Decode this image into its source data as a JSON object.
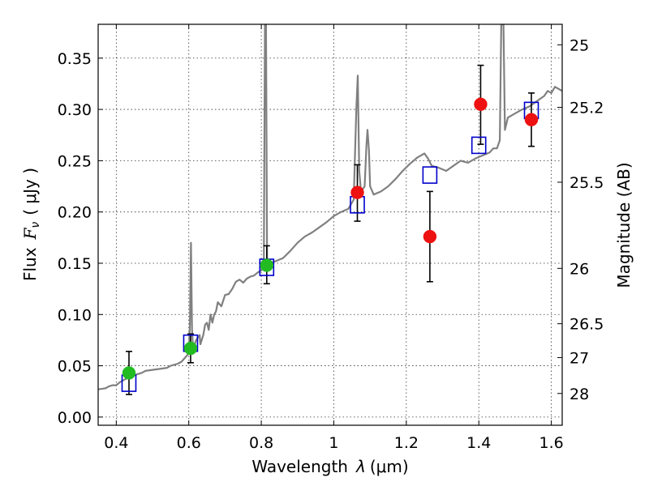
{
  "chart_data": {
    "type": "scatter",
    "xlabel": "Wavelength",
    "xlabel_symbol": "λ",
    "xlabel_unit": "(μm)",
    "ylabel": "Flux",
    "ylabel_symbol": "F",
    "ylabel_sub": "ν",
    "ylabel_unit": "( μJy )",
    "y2label": "Magnitude (AB)",
    "xlim": [
      0.35,
      1.63
    ],
    "ylim": [
      -0.008,
      0.383
    ],
    "grid": true,
    "x_ticks": [
      {
        "value": 0.4,
        "label": "0.4"
      },
      {
        "value": 0.6,
        "label": "0.6"
      },
      {
        "value": 0.8,
        "label": "0.8"
      },
      {
        "value": 1.0,
        "label": "1"
      },
      {
        "value": 1.2,
        "label": "1.2"
      },
      {
        "value": 1.4,
        "label": "1.4"
      },
      {
        "value": 1.6,
        "label": "1.6"
      }
    ],
    "y_ticks": [
      {
        "value": 0.0,
        "label": "0.00"
      },
      {
        "value": 0.05,
        "label": "0.05"
      },
      {
        "value": 0.1,
        "label": "0.10"
      },
      {
        "value": 0.15,
        "label": "0.15"
      },
      {
        "value": 0.2,
        "label": "0.20"
      },
      {
        "value": 0.25,
        "label": "0.25"
      },
      {
        "value": 0.3,
        "label": "0.30"
      },
      {
        "value": 0.35,
        "label": "0.35"
      }
    ],
    "y2_ticks": [
      {
        "flux": 0.363,
        "label": "25"
      },
      {
        "flux": 0.302,
        "label": "25.2"
      },
      {
        "flux": 0.229,
        "label": "25.5"
      },
      {
        "flux": 0.145,
        "label": "26"
      },
      {
        "flux": 0.091,
        "label": "26.5"
      },
      {
        "flux": 0.058,
        "label": "27"
      },
      {
        "flux": 0.023,
        "label": "28"
      }
    ],
    "series": [
      {
        "kind": "line",
        "color": "#808080",
        "points": [
          [
            0.35,
            0.027
          ],
          [
            0.37,
            0.028
          ],
          [
            0.38,
            0.03
          ],
          [
            0.39,
            0.031
          ],
          [
            0.4,
            0.031
          ],
          [
            0.41,
            0.034
          ],
          [
            0.42,
            0.036
          ],
          [
            0.43,
            0.038
          ],
          [
            0.44,
            0.04
          ],
          [
            0.45,
            0.041
          ],
          [
            0.46,
            0.042
          ],
          [
            0.47,
            0.043
          ],
          [
            0.48,
            0.045
          ],
          [
            0.5,
            0.046
          ],
          [
            0.52,
            0.047
          ],
          [
            0.54,
            0.048
          ],
          [
            0.55,
            0.05
          ],
          [
            0.57,
            0.052
          ],
          [
            0.58,
            0.054
          ],
          [
            0.59,
            0.058
          ],
          [
            0.6,
            0.062
          ],
          [
            0.603,
            0.09
          ],
          [
            0.606,
            0.17
          ],
          [
            0.609,
            0.085
          ],
          [
            0.612,
            0.066
          ],
          [
            0.62,
            0.075
          ],
          [
            0.63,
            0.08
          ],
          [
            0.632,
            0.071
          ],
          [
            0.64,
            0.08
          ],
          [
            0.645,
            0.09
          ],
          [
            0.65,
            0.092
          ],
          [
            0.655,
            0.085
          ],
          [
            0.66,
            0.1
          ],
          [
            0.665,
            0.092
          ],
          [
            0.67,
            0.1
          ],
          [
            0.675,
            0.103
          ],
          [
            0.68,
            0.112
          ],
          [
            0.69,
            0.108
          ],
          [
            0.7,
            0.119
          ],
          [
            0.71,
            0.12
          ],
          [
            0.72,
            0.125
          ],
          [
            0.73,
            0.132
          ],
          [
            0.74,
            0.134
          ],
          [
            0.75,
            0.131
          ],
          [
            0.76,
            0.135
          ],
          [
            0.77,
            0.137
          ],
          [
            0.78,
            0.138
          ],
          [
            0.79,
            0.141
          ],
          [
            0.8,
            0.143
          ],
          [
            0.807,
            0.148
          ],
          [
            0.81,
            0.383
          ],
          [
            0.813,
            0.383
          ],
          [
            0.816,
            0.155
          ],
          [
            0.82,
            0.15
          ],
          [
            0.84,
            0.152
          ],
          [
            0.86,
            0.155
          ],
          [
            0.88,
            0.162
          ],
          [
            0.9,
            0.17
          ],
          [
            0.92,
            0.176
          ],
          [
            0.94,
            0.18
          ],
          [
            0.96,
            0.185
          ],
          [
            0.98,
            0.19
          ],
          [
            1.0,
            0.196
          ],
          [
            1.02,
            0.2
          ],
          [
            1.04,
            0.203
          ],
          [
            1.055,
            0.212
          ],
          [
            1.062,
            0.3
          ],
          [
            1.066,
            0.333
          ],
          [
            1.07,
            0.24
          ],
          [
            1.075,
            0.22
          ],
          [
            1.085,
            0.225
          ],
          [
            1.09,
            0.265
          ],
          [
            1.093,
            0.28
          ],
          [
            1.097,
            0.26
          ],
          [
            1.1,
            0.225
          ],
          [
            1.11,
            0.217
          ],
          [
            1.13,
            0.22
          ],
          [
            1.15,
            0.225
          ],
          [
            1.17,
            0.232
          ],
          [
            1.19,
            0.24
          ],
          [
            1.21,
            0.247
          ],
          [
            1.23,
            0.253
          ],
          [
            1.25,
            0.257
          ],
          [
            1.26,
            0.252
          ],
          [
            1.27,
            0.245
          ],
          [
            1.29,
            0.243
          ],
          [
            1.31,
            0.24
          ],
          [
            1.33,
            0.245
          ],
          [
            1.35,
            0.25
          ],
          [
            1.37,
            0.248
          ],
          [
            1.39,
            0.252
          ],
          [
            1.41,
            0.255
          ],
          [
            1.43,
            0.258
          ],
          [
            1.44,
            0.262
          ],
          [
            1.45,
            0.262
          ],
          [
            1.458,
            0.27
          ],
          [
            1.462,
            0.383
          ],
          [
            1.468,
            0.383
          ],
          [
            1.472,
            0.28
          ],
          [
            1.48,
            0.292
          ],
          [
            1.5,
            0.296
          ],
          [
            1.52,
            0.3
          ],
          [
            1.54,
            0.303
          ],
          [
            1.56,
            0.308
          ],
          [
            1.58,
            0.313
          ],
          [
            1.59,
            0.318
          ],
          [
            1.6,
            0.316
          ],
          [
            1.61,
            0.322
          ],
          [
            1.63,
            0.318
          ]
        ]
      },
      {
        "kind": "open-square",
        "color": "#0000cc",
        "points": [
          [
            0.435,
            0.033
          ],
          [
            0.605,
            0.072
          ],
          [
            0.815,
            0.146
          ],
          [
            1.065,
            0.207
          ],
          [
            1.265,
            0.236
          ],
          [
            1.4,
            0.265
          ],
          [
            1.545,
            0.299
          ]
        ]
      },
      {
        "kind": "filled-circle",
        "color": "#22bb22",
        "points": [
          {
            "x": 0.435,
            "y": 0.043,
            "lo": 0.022,
            "hi": 0.064
          },
          {
            "x": 0.605,
            "y": 0.067,
            "lo": 0.053,
            "hi": 0.081
          },
          {
            "x": 0.815,
            "y": 0.148,
            "lo": 0.13,
            "hi": 0.167
          }
        ]
      },
      {
        "kind": "filled-circle",
        "color": "#ee1111",
        "points": [
          {
            "x": 1.065,
            "y": 0.219,
            "lo": 0.191,
            "hi": 0.246
          },
          {
            "x": 1.265,
            "y": 0.176,
            "lo": 0.132,
            "hi": 0.22
          },
          {
            "x": 1.405,
            "y": 0.305,
            "lo": 0.266,
            "hi": 0.343
          },
          {
            "x": 1.545,
            "y": 0.29,
            "lo": 0.264,
            "hi": 0.316
          }
        ]
      }
    ]
  }
}
